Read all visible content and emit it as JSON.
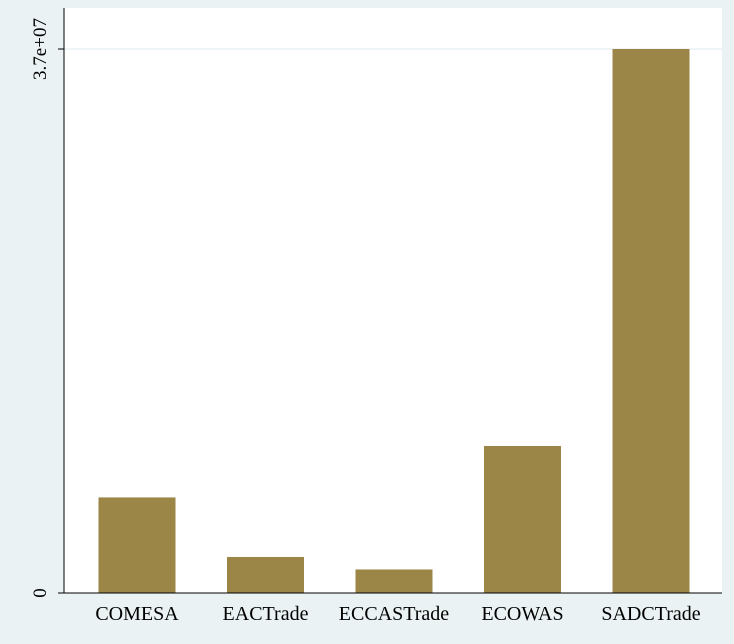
{
  "chart_data": {
    "type": "bar",
    "title": "",
    "xlabel": "",
    "ylabel": "",
    "categories": [
      "COMESA",
      "EACTrade",
      "ECCASTrade",
      "ECOWAS",
      "SADCTrade"
    ],
    "values": [
      6500000,
      2450000,
      1600000,
      10000000,
      37000000
    ],
    "ylim": [
      0,
      37000000
    ],
    "y_ticks": [
      {
        "value": 0,
        "label": "0"
      },
      {
        "value": 37000000,
        "label": "3.7e+07"
      }
    ],
    "grid": true,
    "legend": "none",
    "colors": {
      "bar": "#9b8647",
      "background": "#eaf2f3",
      "plot_background": "#ffffff",
      "grid": "#eaf2f3",
      "axis": "#000000"
    }
  }
}
